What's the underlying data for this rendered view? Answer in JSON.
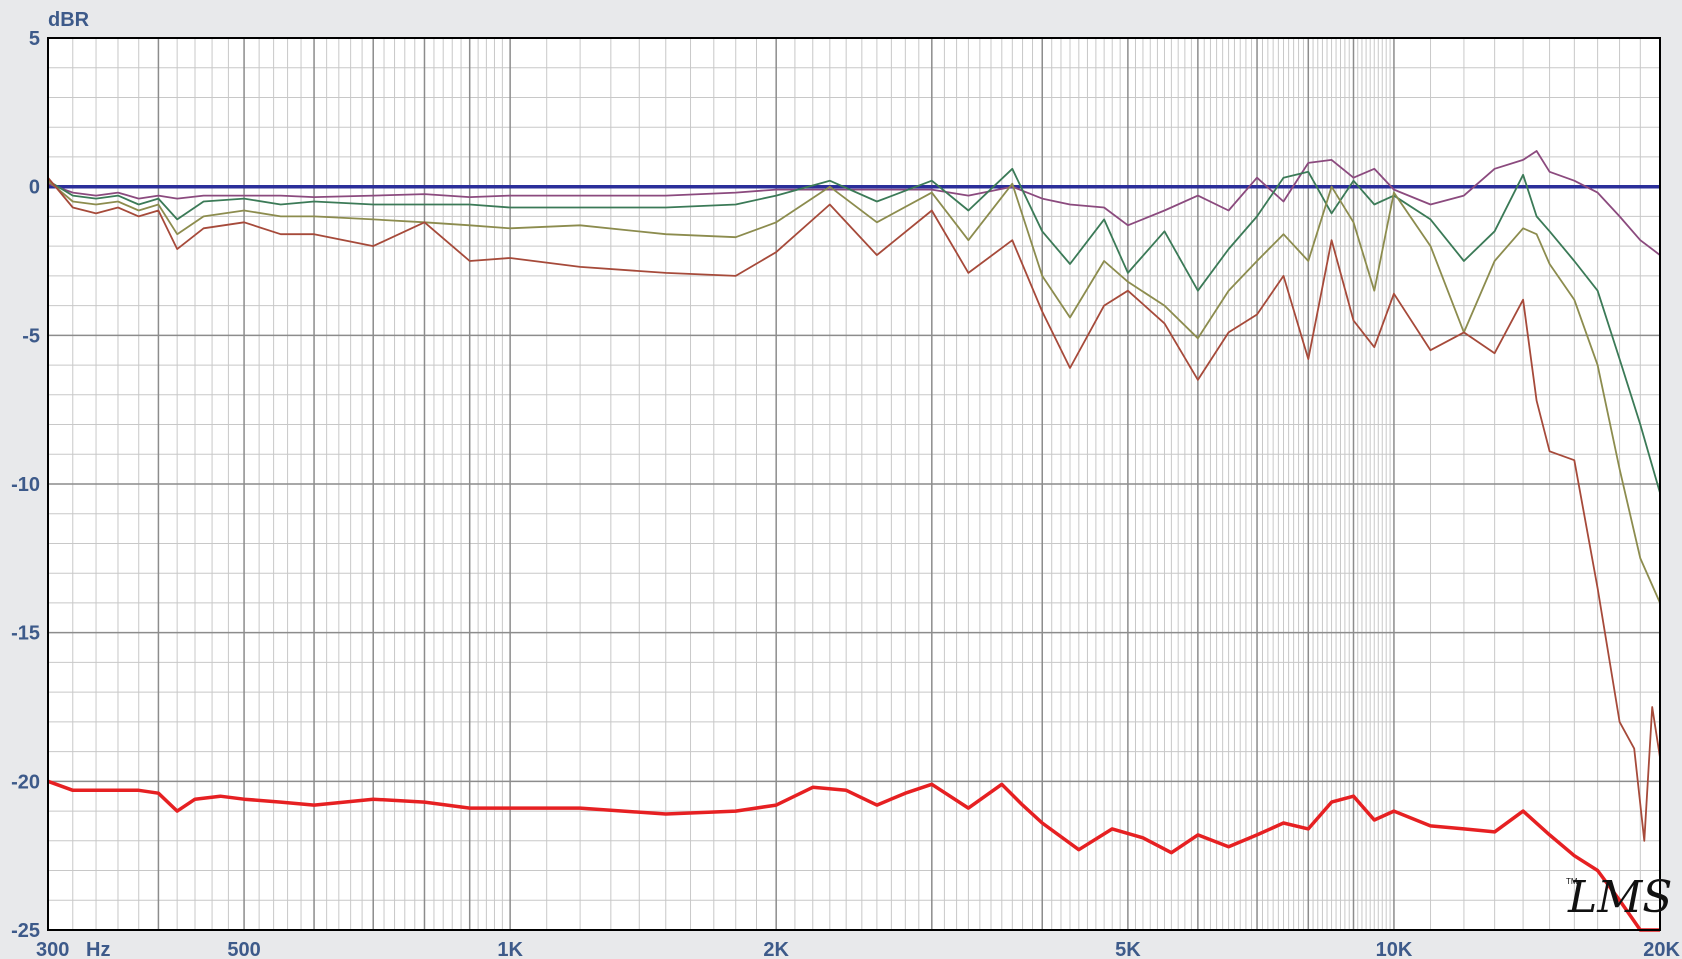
{
  "chart_data": {
    "type": "line",
    "x_scale": "log",
    "xlim": [
      300,
      20000
    ],
    "ylim": [
      -25,
      5
    ],
    "grid": true,
    "ylabel": "dBR",
    "x_unit": "Hz",
    "yticks": [
      5,
      0,
      -5,
      -10,
      -15,
      -20,
      -25
    ],
    "ytick_labels": [
      "5",
      "0",
      "-5",
      "-10",
      "-15",
      "-20",
      "-25"
    ],
    "xticks": [
      300,
      500,
      1000,
      2000,
      5000,
      10000,
      20000
    ],
    "xtick_labels": [
      "300",
      "500",
      "1K",
      "2K",
      "5K",
      "10K",
      "20K"
    ],
    "logo": "LMS",
    "colors": {
      "background": "#e8e9eb",
      "plot_bg": "#ffffff",
      "grid_major": "#8c8c8c",
      "grid_minor": "#c8c8c8",
      "axis_text": "#3d5a8a"
    },
    "series": [
      {
        "color": "#2b2f9a",
        "width": 3.5,
        "x": [
          300,
          20000
        ],
        "y": [
          0,
          0
        ]
      },
      {
        "color": "#8b4a7e",
        "width": 1.8,
        "x": [
          300,
          320,
          340,
          360,
          380,
          400,
          420,
          450,
          500,
          550,
          600,
          700,
          800,
          900,
          1000,
          1200,
          1500,
          1800,
          2000,
          2300,
          2600,
          3000,
          3300,
          3700,
          4000,
          4300,
          4700,
          5000,
          5500,
          6000,
          6500,
          7000,
          7500,
          8000,
          8500,
          9000,
          9500,
          10000,
          11000,
          12000,
          13000,
          14000,
          14500,
          15000,
          16000,
          17000,
          18000,
          19000,
          20000
        ],
        "y": [
          0.1,
          -0.2,
          -0.3,
          -0.2,
          -0.4,
          -0.3,
          -0.4,
          -0.3,
          -0.3,
          -0.3,
          -0.35,
          -0.3,
          -0.25,
          -0.35,
          -0.3,
          -0.3,
          -0.3,
          -0.2,
          -0.1,
          -0.1,
          -0.1,
          -0.1,
          -0.3,
          0.0,
          -0.4,
          -0.6,
          -0.7,
          -1.3,
          -0.8,
          -0.3,
          -0.8,
          0.3,
          -0.5,
          0.8,
          0.9,
          0.3,
          0.6,
          -0.1,
          -0.6,
          -0.3,
          0.6,
          0.9,
          1.2,
          0.5,
          0.2,
          -0.2,
          -1.0,
          -1.8,
          -2.3
        ]
      },
      {
        "color": "#3b7a57",
        "width": 1.8,
        "x": [
          300,
          320,
          340,
          360,
          380,
          400,
          420,
          450,
          500,
          550,
          600,
          700,
          800,
          900,
          1000,
          1200,
          1500,
          1800,
          2000,
          2300,
          2600,
          3000,
          3300,
          3700,
          4000,
          4300,
          4700,
          5000,
          5500,
          6000,
          6500,
          7000,
          7500,
          8000,
          8500,
          9000,
          9500,
          10000,
          11000,
          12000,
          13000,
          14000,
          14500,
          15000,
          16000,
          17000,
          18000,
          19000,
          20000
        ],
        "y": [
          0.2,
          -0.3,
          -0.4,
          -0.3,
          -0.6,
          -0.4,
          -1.1,
          -0.5,
          -0.4,
          -0.6,
          -0.5,
          -0.6,
          -0.6,
          -0.6,
          -0.7,
          -0.7,
          -0.7,
          -0.6,
          -0.3,
          0.2,
          -0.5,
          0.2,
          -0.8,
          0.6,
          -1.5,
          -2.6,
          -1.1,
          -2.9,
          -1.5,
          -3.5,
          -2.1,
          -1.0,
          0.3,
          0.5,
          -0.9,
          0.2,
          -0.6,
          -0.3,
          -1.1,
          -2.5,
          -1.5,
          0.4,
          -1.0,
          -1.5,
          -2.5,
          -3.5,
          -5.8,
          -8.0,
          -10.3
        ]
      },
      {
        "color": "#8c8c4e",
        "width": 1.8,
        "x": [
          300,
          320,
          340,
          360,
          380,
          400,
          420,
          450,
          500,
          550,
          600,
          700,
          800,
          900,
          1000,
          1200,
          1500,
          1800,
          2000,
          2300,
          2600,
          3000,
          3300,
          3700,
          4000,
          4300,
          4700,
          5000,
          5500,
          6000,
          6500,
          7000,
          7500,
          8000,
          8500,
          9000,
          9500,
          10000,
          11000,
          12000,
          13000,
          14000,
          14500,
          15000,
          16000,
          17000,
          18000,
          19000,
          20000
        ],
        "y": [
          0.2,
          -0.5,
          -0.6,
          -0.5,
          -0.8,
          -0.6,
          -1.6,
          -1.0,
          -0.8,
          -1.0,
          -1.0,
          -1.1,
          -1.2,
          -1.3,
          -1.4,
          -1.3,
          -1.6,
          -1.7,
          -1.2,
          0.0,
          -1.2,
          -0.2,
          -1.8,
          0.1,
          -3.0,
          -4.4,
          -2.5,
          -3.2,
          -4.0,
          -5.1,
          -3.5,
          -2.5,
          -1.6,
          -2.5,
          0.0,
          -1.2,
          -3.5,
          -0.2,
          -2.0,
          -4.9,
          -2.5,
          -1.4,
          -1.6,
          -2.6,
          -3.8,
          -6.0,
          -9.5,
          -12.5,
          -14.0
        ]
      },
      {
        "color": "#a64a3a",
        "width": 1.8,
        "x": [
          300,
          320,
          340,
          360,
          380,
          400,
          420,
          450,
          500,
          550,
          600,
          700,
          800,
          900,
          1000,
          1200,
          1500,
          1800,
          2000,
          2300,
          2600,
          3000,
          3300,
          3700,
          4000,
          4300,
          4700,
          5000,
          5500,
          6000,
          6500,
          7000,
          7500,
          8000,
          8500,
          9000,
          9500,
          10000,
          11000,
          12000,
          13000,
          14000,
          14500,
          15000,
          16000,
          17000,
          18000,
          18700,
          19200,
          19600,
          20000
        ],
        "y": [
          0.3,
          -0.7,
          -0.9,
          -0.7,
          -1.0,
          -0.8,
          -2.1,
          -1.4,
          -1.2,
          -1.6,
          -1.6,
          -2.0,
          -1.2,
          -2.5,
          -2.4,
          -2.7,
          -2.9,
          -3.0,
          -2.2,
          -0.6,
          -2.3,
          -0.8,
          -2.9,
          -1.8,
          -4.2,
          -6.1,
          -4.0,
          -3.5,
          -4.6,
          -6.5,
          -4.9,
          -4.3,
          -3.0,
          -5.8,
          -1.8,
          -4.5,
          -5.4,
          -3.6,
          -5.5,
          -4.9,
          -5.6,
          -3.8,
          -7.2,
          -8.9,
          -9.2,
          -13.5,
          -18.0,
          -18.9,
          -22.0,
          -17.5,
          -19.2
        ]
      },
      {
        "color": "#e62022",
        "width": 3.5,
        "x": [
          300,
          320,
          340,
          360,
          380,
          400,
          420,
          440,
          470,
          500,
          550,
          600,
          700,
          800,
          900,
          1000,
          1200,
          1500,
          1800,
          2000,
          2200,
          2400,
          2600,
          2800,
          3000,
          3300,
          3600,
          3800,
          4000,
          4400,
          4800,
          5200,
          5600,
          6000,
          6500,
          7000,
          7500,
          8000,
          8500,
          9000,
          9500,
          10000,
          11000,
          12000,
          13000,
          14000,
          15000,
          16000,
          17000,
          18000,
          19000,
          20000
        ],
        "y": [
          -20.0,
          -20.3,
          -20.3,
          -20.3,
          -20.3,
          -20.4,
          -21.0,
          -20.6,
          -20.5,
          -20.6,
          -20.7,
          -20.8,
          -20.6,
          -20.7,
          -20.9,
          -20.9,
          -20.9,
          -21.1,
          -21.0,
          -20.8,
          -20.2,
          -20.3,
          -20.8,
          -20.4,
          -20.1,
          -20.9,
          -20.1,
          -20.8,
          -21.4,
          -22.3,
          -21.6,
          -21.9,
          -22.4,
          -21.8,
          -22.2,
          -21.8,
          -21.4,
          -21.6,
          -20.7,
          -20.5,
          -21.3,
          -21.0,
          -21.5,
          -21.6,
          -21.7,
          -21.0,
          -21.8,
          -22.5,
          -23.0,
          -24.0,
          -25.0,
          -25.0
        ]
      }
    ]
  }
}
